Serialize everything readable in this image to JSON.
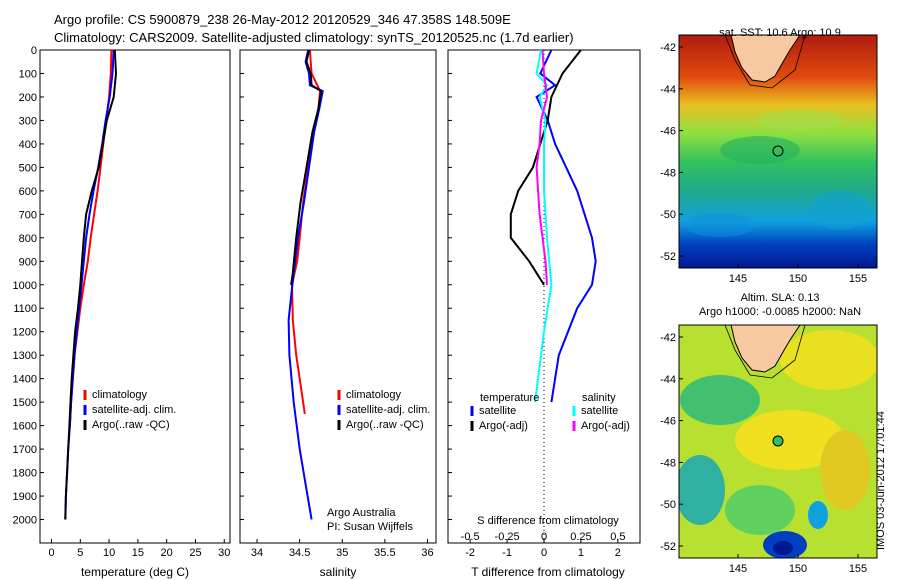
{
  "header": {
    "line1": "Argo profile: CS 5900879_238 26-May-2012 20120529_346 47.358S 148.509E",
    "line2": "Climatology: CARS2009. Satellite-adjusted climatology: synTS_20120525.nc (1.7d earlier)"
  },
  "maps": {
    "sst_title": "sat. SST: 10.6 Argo: 10.9",
    "sla_title1": "Altim. SLA: 0.13",
    "sla_title2": "Argo h1000: -0.0085 h2000: NaN",
    "lat_ticks": [
      "-42",
      "-44",
      "-46",
      "-48",
      "-50",
      "-52"
    ],
    "lon_ticks": [
      "145",
      "150",
      "155"
    ]
  },
  "stamp": "IMOS 03-Jun-2012 17:01:44",
  "credit": {
    "line1": "Argo Australia",
    "line2": "PI: Susan Wijffels"
  },
  "colors": {
    "climatology": "#ff0000",
    "satellite": "#0000ff",
    "argo": "#000000",
    "t_sat": "#0000ff",
    "t_argo": "#000000",
    "s_sat": "#00ffff",
    "s_argo": "#ff00ff"
  },
  "chart_data": [
    {
      "type": "line",
      "xlabel": "temperature (deg C)",
      "ylabel": "",
      "xlim": [
        -2,
        31
      ],
      "ylim": [
        2100,
        0
      ],
      "xticks": [
        "0",
        "5",
        "10",
        "15",
        "20",
        "25",
        "30"
      ],
      "yticks": [
        "0",
        "100",
        "200",
        "300",
        "400",
        "500",
        "600",
        "700",
        "800",
        "900",
        "1000",
        "1100",
        "1200",
        "1300",
        "1400",
        "1500",
        "1600",
        "1700",
        "1800",
        "1900",
        "2000"
      ],
      "legend": [
        "climatology",
        "satellite-adj. clim.",
        "Argo(..raw -QC)"
      ],
      "series": [
        {
          "name": "climatology",
          "points": [
            [
              10.4,
              0
            ],
            [
              10.3,
              100
            ],
            [
              10.0,
              200
            ],
            [
              9.5,
              300
            ],
            [
              9.0,
              400
            ],
            [
              8.5,
              500
            ],
            [
              8.0,
              600
            ],
            [
              7.4,
              700
            ],
            [
              6.8,
              800
            ],
            [
              6.3,
              900
            ],
            [
              5.6,
              1000
            ],
            [
              5.0,
              1100
            ],
            [
              4.5,
              1200
            ],
            [
              4.0,
              1300
            ],
            [
              3.7,
              1400
            ],
            [
              3.4,
              1500
            ],
            [
              3.2,
              1600
            ]
          ]
        },
        {
          "name": "satellite-adj. clim.",
          "points": [
            [
              10.8,
              0
            ],
            [
              10.6,
              100
            ],
            [
              10.1,
              200
            ],
            [
              9.4,
              300
            ],
            [
              8.8,
              400
            ],
            [
              8.1,
              500
            ],
            [
              7.3,
              600
            ],
            [
              6.6,
              700
            ],
            [
              6.0,
              800
            ],
            [
              5.6,
              900
            ],
            [
              5.2,
              1000
            ],
            [
              4.8,
              1100
            ],
            [
              4.4,
              1200
            ],
            [
              4.0,
              1300
            ],
            [
              3.7,
              1400
            ],
            [
              3.4,
              1500
            ],
            [
              3.2,
              1600
            ],
            [
              2.9,
              1700
            ],
            [
              2.7,
              1800
            ],
            [
              2.5,
              1900
            ],
            [
              2.4,
              2000
            ]
          ]
        },
        {
          "name": "Argo(..raw -QC)",
          "points": [
            [
              11.0,
              0
            ],
            [
              11.2,
              100
            ],
            [
              10.8,
              200
            ],
            [
              9.6,
              300
            ],
            [
              8.9,
              400
            ],
            [
              8.2,
              500
            ],
            [
              7.0,
              600
            ],
            [
              6.0,
              700
            ],
            [
              5.6,
              800
            ],
            [
              5.3,
              900
            ],
            [
              5.0,
              1000
            ],
            [
              4.6,
              1100
            ],
            [
              4.1,
              1200
            ],
            [
              3.8,
              1300
            ],
            [
              3.5,
              1400
            ],
            [
              3.3,
              1500
            ],
            [
              3.1,
              1600
            ],
            [
              2.9,
              1700
            ],
            [
              2.7,
              1800
            ],
            [
              2.5,
              1900
            ],
            [
              2.4,
              2000
            ]
          ]
        }
      ]
    },
    {
      "type": "line",
      "xlabel": "salinity",
      "xlim": [
        33.8,
        36.1
      ],
      "ylim": [
        2100,
        0
      ],
      "xticks": [
        "34",
        "34.5",
        "35",
        "35.5",
        "36"
      ],
      "legend": [
        "climatology",
        "satellite-adj. clim.",
        "Argo(..raw -QC)"
      ],
      "series": [
        {
          "name": "climatology",
          "points": [
            [
              34.62,
              0
            ],
            [
              34.63,
              50
            ],
            [
              34.64,
              100
            ],
            [
              34.74,
              175
            ],
            [
              34.72,
              250
            ],
            [
              34.66,
              350
            ],
            [
              34.6,
              500
            ],
            [
              34.54,
              650
            ],
            [
              34.5,
              800
            ],
            [
              34.47,
              900
            ],
            [
              34.41,
              1000
            ],
            [
              34.42,
              1150
            ],
            [
              34.46,
              1300
            ],
            [
              34.5,
              1400
            ],
            [
              34.54,
              1500
            ],
            [
              34.56,
              1550
            ]
          ]
        },
        {
          "name": "satellite-adj. clim.",
          "points": [
            [
              34.6,
              0
            ],
            [
              34.57,
              50
            ],
            [
              34.61,
              100
            ],
            [
              34.62,
              150
            ],
            [
              34.77,
              175
            ],
            [
              34.73,
              250
            ],
            [
              34.67,
              350
            ],
            [
              34.61,
              500
            ],
            [
              34.55,
              650
            ],
            [
              34.48,
              800
            ],
            [
              34.43,
              950
            ],
            [
              34.4,
              1050
            ],
            [
              34.37,
              1150
            ],
            [
              34.38,
              1300
            ],
            [
              34.43,
              1500
            ],
            [
              34.5,
              1700
            ],
            [
              34.57,
              1850
            ],
            [
              34.64,
              2000
            ]
          ]
        },
        {
          "name": "Argo(..raw -QC)",
          "points": [
            [
              34.61,
              0
            ],
            [
              34.58,
              50
            ],
            [
              34.63,
              100
            ],
            [
              34.64,
              150
            ],
            [
              34.75,
              175
            ],
            [
              34.72,
              250
            ],
            [
              34.65,
              350
            ],
            [
              34.58,
              500
            ],
            [
              34.51,
              650
            ],
            [
              34.46,
              800
            ],
            [
              34.42,
              950
            ],
            [
              34.4,
              1000
            ]
          ]
        }
      ]
    },
    {
      "type": "line",
      "xlabel": "T difference from climatology",
      "xlabel2": "S difference from climatology",
      "xlim": [
        -2.6,
        2.6
      ],
      "ylim": [
        2100,
        0
      ],
      "xticks": [
        "-2",
        "-1",
        "0",
        "1",
        "2"
      ],
      "xticks2": [
        "-0.5",
        "-0.25",
        "0",
        "0.25",
        "0.5"
      ],
      "legend": {
        "temperature_header": "temperature",
        "salinity_header": "salinity",
        "t_sat": "satellite",
        "t_argo": "Argo(-adj)",
        "s_sat": "satellite",
        "s_argo": "Argo(-adj)"
      },
      "series": [
        {
          "name": "temperature satellite",
          "points": [
            [
              0.2,
              0
            ],
            [
              -0.1,
              100
            ],
            [
              0.3,
              150
            ],
            [
              -0.2,
              200
            ],
            [
              0.1,
              300
            ],
            [
              0.3,
              400
            ],
            [
              0.6,
              500
            ],
            [
              0.9,
              600
            ],
            [
              1.1,
              700
            ],
            [
              1.3,
              800
            ],
            [
              1.4,
              900
            ],
            [
              1.3,
              1000
            ],
            [
              0.9,
              1100
            ],
            [
              0.4,
              1300
            ],
            [
              0.3,
              1400
            ],
            [
              0.2,
              1500
            ]
          ]
        },
        {
          "name": "temperature Argo(-adj)",
          "points": [
            [
              1.0,
              0
            ],
            [
              0.5,
              100
            ],
            [
              0.2,
              200
            ],
            [
              0.1,
              300
            ],
            [
              -0.1,
              400
            ],
            [
              -0.3,
              500
            ],
            [
              -0.7,
              600
            ],
            [
              -0.9,
              700
            ],
            [
              -0.9,
              800
            ],
            [
              -0.4,
              900
            ],
            [
              0.0,
              1000
            ]
          ]
        },
        {
          "name": "salinity satellite",
          "points": [
            [
              -0.02,
              0
            ],
            [
              -0.05,
              100
            ],
            [
              0.02,
              150
            ],
            [
              -0.03,
              200
            ],
            [
              0.01,
              300
            ],
            [
              0.0,
              400
            ],
            [
              0.0,
              600
            ],
            [
              0.02,
              800
            ],
            [
              0.05,
              1000
            ],
            [
              0.0,
              1200
            ],
            [
              -0.06,
              1500
            ]
          ]
        },
        {
          "name": "salinity Argo(-adj)",
          "points": [
            [
              -0.01,
              0
            ],
            [
              0.0,
              100
            ],
            [
              0.02,
              200
            ],
            [
              -0.02,
              300
            ],
            [
              -0.03,
              400
            ],
            [
              -0.05,
              500
            ],
            [
              -0.03,
              700
            ],
            [
              0.01,
              900
            ],
            [
              0.02,
              1000
            ]
          ]
        }
      ]
    }
  ]
}
